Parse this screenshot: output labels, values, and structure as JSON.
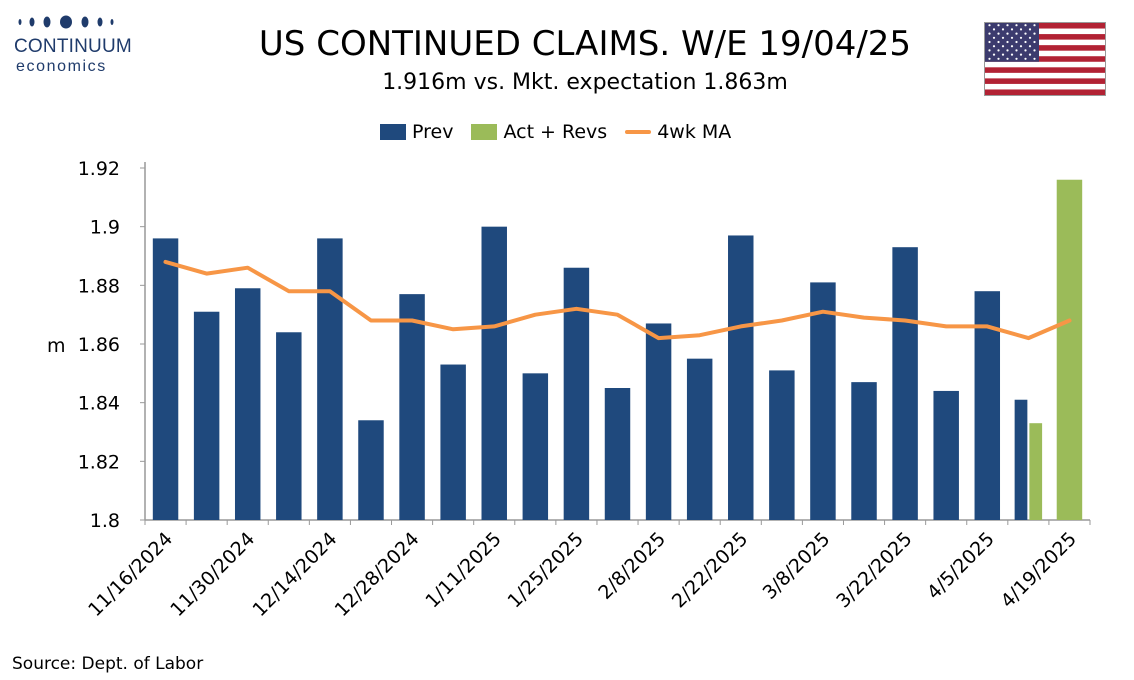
{
  "logo": {
    "name": "CONTINUUM",
    "sub": "economics"
  },
  "header": {
    "title": "US CONTINUED CLAIMS. W/E 19/04/25",
    "subtitle": "1.916m vs. Mkt. expectation 1.863m"
  },
  "source": "Source: Dept. of Labor",
  "colors": {
    "prev": "#1f497d",
    "act": "#9bbb59",
    "ma": "#f79646",
    "brand": "#1f3b6b"
  },
  "flag": {
    "icon": "us-flag-icon"
  },
  "chart_data": {
    "type": "bar",
    "ylabel": "m",
    "ylim": [
      1.8,
      1.92
    ],
    "yticks": [
      "1.8",
      "1.82",
      "1.84",
      "1.86",
      "1.88",
      "1.9",
      "1.92"
    ],
    "categories": [
      "11/16/2024",
      "11/23/2024",
      "11/30/2024",
      "12/7/2024",
      "12/14/2024",
      "12/21/2024",
      "12/28/2024",
      "1/4/2025",
      "1/11/2025",
      "1/18/2025",
      "1/25/2025",
      "2/1/2025",
      "2/8/2025",
      "2/15/2025",
      "2/22/2025",
      "3/1/2025",
      "3/8/2025",
      "3/15/2025",
      "3/22/2025",
      "3/29/2025",
      "4/5/2025",
      "4/12/2025",
      "4/19/2025"
    ],
    "xtick_labels": [
      "11/16/2024",
      "11/30/2024",
      "12/14/2024",
      "12/28/2024",
      "1/11/2025",
      "1/25/2025",
      "2/8/2025",
      "2/22/2025",
      "3/8/2025",
      "3/22/2025",
      "4/5/2025",
      "4/19/2025"
    ],
    "legend": [
      "Prev",
      "Act + Revs",
      "4wk MA"
    ],
    "legend_position": "top",
    "grid": false,
    "series": [
      {
        "name": "Prev",
        "type": "bar",
        "values": [
          1.896,
          1.871,
          1.879,
          1.864,
          1.896,
          1.834,
          1.877,
          1.853,
          1.9,
          1.85,
          1.886,
          1.845,
          1.867,
          1.855,
          1.897,
          1.851,
          1.881,
          1.847,
          1.893,
          1.844,
          1.878,
          1.841,
          null
        ]
      },
      {
        "name": "Act + Revs",
        "type": "bar",
        "values": [
          null,
          null,
          null,
          null,
          null,
          null,
          null,
          null,
          null,
          null,
          null,
          null,
          null,
          null,
          null,
          null,
          null,
          null,
          null,
          null,
          null,
          1.833,
          1.916
        ]
      },
      {
        "name": "4wk MA",
        "type": "line",
        "values": [
          1.888,
          1.884,
          1.886,
          1.878,
          1.878,
          1.868,
          1.868,
          1.865,
          1.866,
          1.87,
          1.872,
          1.87,
          1.862,
          1.863,
          1.866,
          1.868,
          1.871,
          1.869,
          1.868,
          1.866,
          1.866,
          1.862,
          1.868
        ]
      }
    ]
  }
}
